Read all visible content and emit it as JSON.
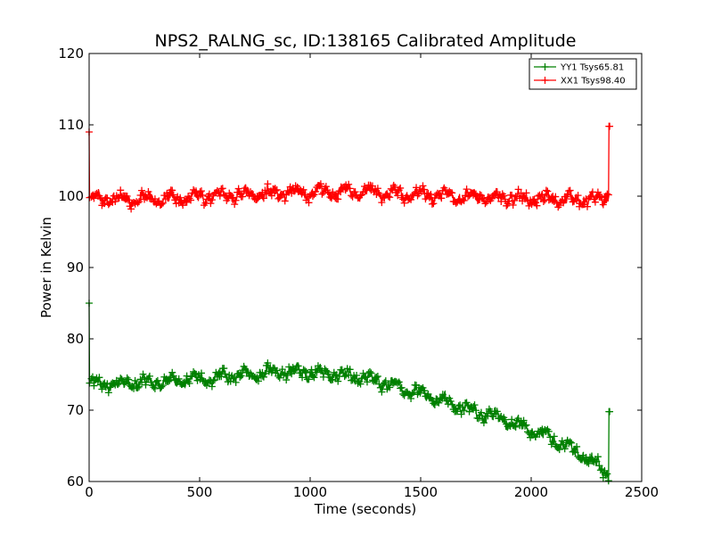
{
  "chart_data": {
    "type": "line",
    "title": "NPS2_RALNG_sc, ID:138165 Calibrated Amplitude",
    "xlabel": "Time (seconds)",
    "ylabel": "Power in Kelvin",
    "xlim": [
      0,
      2500
    ],
    "ylim": [
      60,
      120
    ],
    "xticks": [
      "0",
      "500",
      "1000",
      "1500",
      "2000",
      "2500"
    ],
    "yticks": [
      "60",
      "70",
      "80",
      "90",
      "100",
      "110",
      "120"
    ],
    "grid": false,
    "legend_position": "top-right",
    "series": [
      {
        "name": "YY1 Tsys65.81",
        "color": "#008000",
        "x": [
          0,
          2,
          10,
          100,
          200,
          300,
          400,
          500,
          600,
          700,
          800,
          900,
          1000,
          1100,
          1200,
          1300,
          1400,
          1500,
          1600,
          1700,
          1800,
          1900,
          2000,
          2100,
          2200,
          2300,
          2350,
          2352,
          2355
        ],
        "y": [
          85.0,
          73.8,
          73.6,
          73.6,
          73.8,
          74.0,
          74.1,
          74.3,
          74.6,
          75.0,
          75.3,
          75.4,
          75.3,
          75.0,
          74.7,
          74.1,
          73.2,
          72.4,
          71.4,
          70.3,
          69.4,
          68.4,
          67.2,
          65.9,
          64.3,
          62.3,
          61.0,
          69.8,
          69.8
        ]
      },
      {
        "name": "XX1 Tsys98.40",
        "color": "#ff0000",
        "x": [
          0,
          2,
          10,
          100,
          200,
          300,
          400,
          500,
          600,
          700,
          800,
          900,
          1000,
          1100,
          1200,
          1300,
          1400,
          1500,
          1600,
          1700,
          1800,
          1900,
          2000,
          2100,
          2200,
          2300,
          2340,
          2350,
          2352,
          2355
        ],
        "y": [
          109.0,
          99.8,
          99.8,
          99.6,
          99.6,
          99.6,
          99.6,
          99.8,
          100.1,
          100.3,
          100.4,
          100.5,
          100.5,
          100.6,
          100.7,
          100.5,
          100.3,
          100.2,
          100.1,
          100.0,
          99.8,
          99.7,
          99.6,
          99.6,
          99.6,
          99.5,
          99.7,
          100.6,
          109.8,
          109.8
        ]
      }
    ]
  }
}
